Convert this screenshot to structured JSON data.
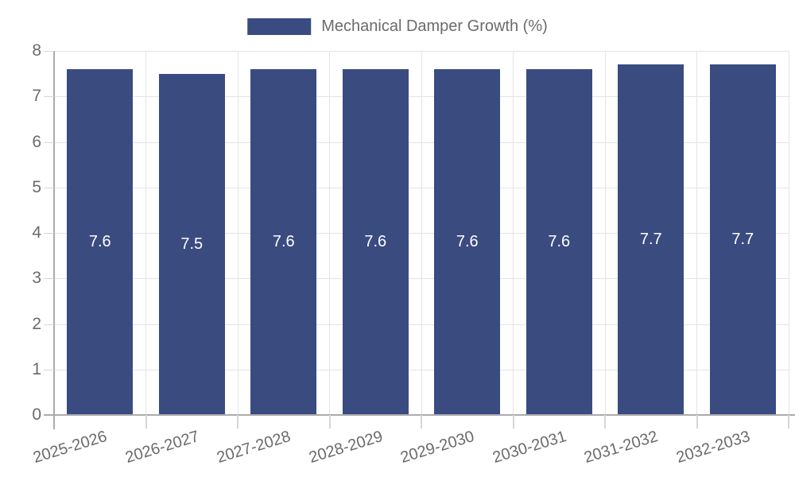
{
  "chart_data": {
    "type": "bar",
    "title": "",
    "legend": {
      "label": "Mechanical Damper Growth (%)",
      "position": "top-center"
    },
    "categories": [
      "2025-2026",
      "2026-2027",
      "2027-2028",
      "2028-2029",
      "2029-2030",
      "2030-2031",
      "2031-2032",
      "2032-2033"
    ],
    "series": [
      {
        "name": "Mechanical Damper Growth (%)",
        "values": [
          7.6,
          7.5,
          7.6,
          7.6,
          7.6,
          7.6,
          7.7,
          7.7
        ]
      }
    ],
    "value_labels": [
      "7.6",
      "7.5",
      "7.6",
      "7.6",
      "7.6",
      "7.6",
      "7.7",
      "7.7"
    ],
    "xlabel": "",
    "ylabel": "",
    "ylim": [
      0,
      8
    ],
    "yticks": [
      0,
      1,
      2,
      3,
      4,
      5,
      6,
      7,
      8
    ],
    "grid": true,
    "bar_label_position": "center",
    "x_tick_rotation_deg": -17,
    "colors": {
      "bar": "#3a4b80",
      "bar_label": "#ffffff",
      "axis_text": "#6b6b6b",
      "grid_line": "#e4e4e4",
      "axis_line": "#ababab",
      "tick_line": "#d6d6d6",
      "background": "#ffffff"
    }
  }
}
